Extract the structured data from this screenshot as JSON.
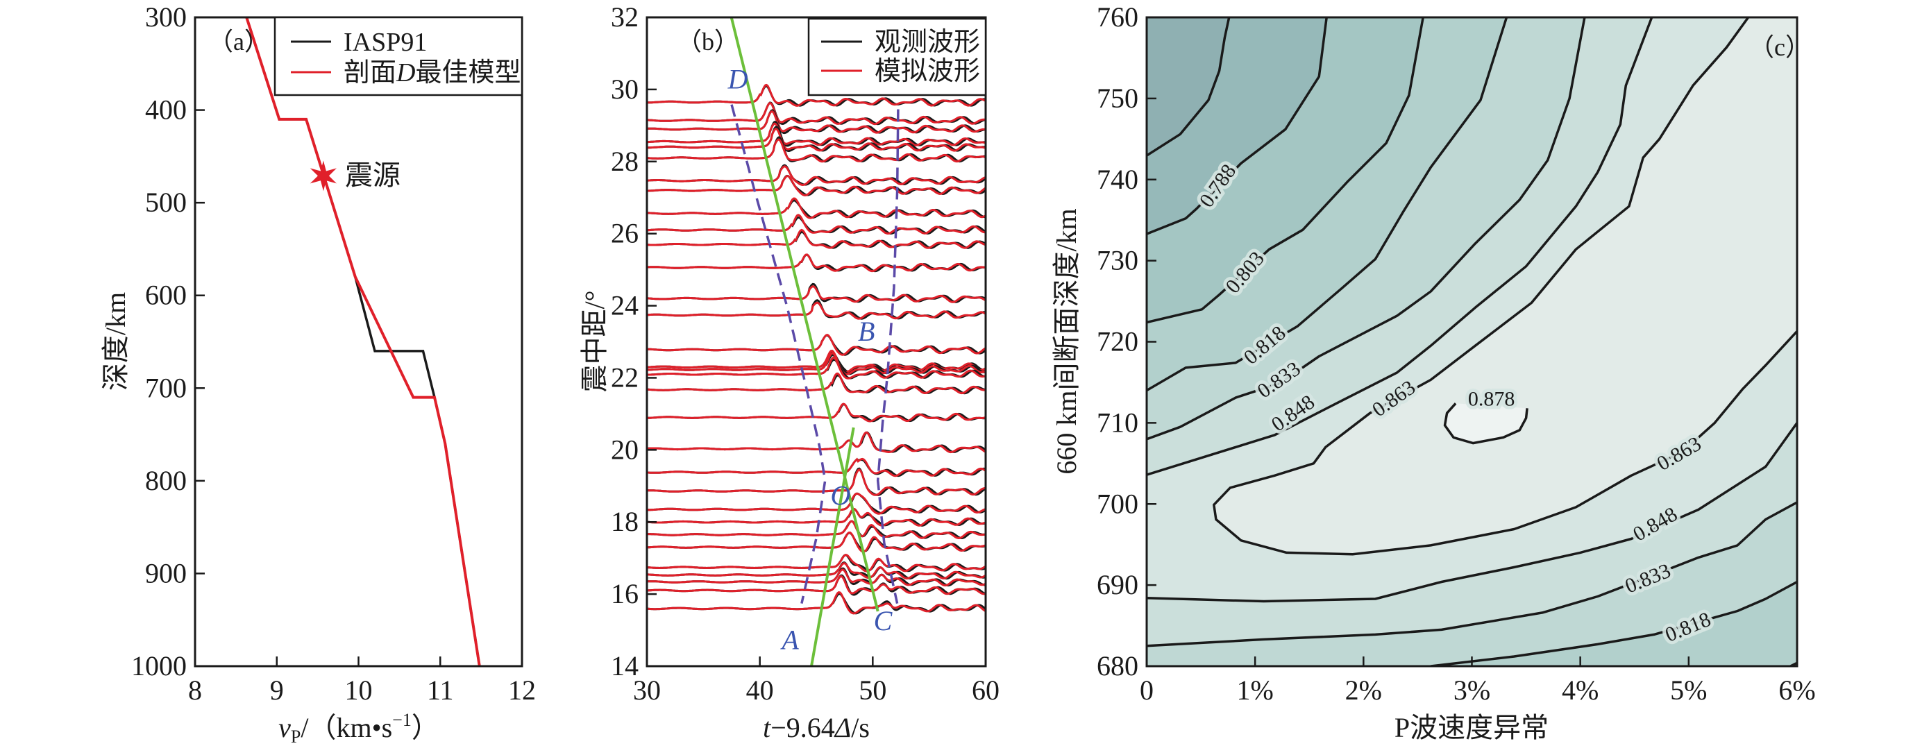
{
  "chart_data": [
    {
      "type": "line",
      "panel_label": "（a）",
      "xlabel": {
        "var": "v",
        "sub": "P",
        "rest": "/（km•s",
        "sup": "−1",
        "end": "）"
      },
      "ylabel": "深度/km",
      "xlim": [
        8,
        12
      ],
      "ylim": [
        1000,
        300
      ],
      "xticks": [
        "8",
        "9",
        "10",
        "11",
        "12"
      ],
      "yticks": [
        "300",
        "400",
        "500",
        "600",
        "700",
        "800",
        "900",
        "1000"
      ],
      "legend_position": "top-right",
      "series": [
        {
          "name": "IASP91",
          "color": "#1a1a1a",
          "points": [
            [
              8.63,
              300
            ],
            [
              9.03,
              410
            ],
            [
              9.36,
              410
            ],
            [
              9.96,
              580
            ],
            [
              10.2,
              660
            ],
            [
              10.79,
              660
            ],
            [
              10.93,
              710
            ],
            [
              11.06,
              760
            ],
            [
              11.48,
              1000
            ]
          ]
        },
        {
          "name": "剖面D最佳模型",
          "color": "#e0202a",
          "points": [
            [
              8.63,
              300
            ],
            [
              9.03,
              410
            ],
            [
              9.36,
              410
            ],
            [
              9.96,
              580
            ],
            [
              10.67,
              710
            ],
            [
              10.93,
              710
            ],
            [
              11.06,
              760
            ],
            [
              11.48,
              1000
            ]
          ]
        }
      ],
      "legend_labels": {
        "iasp": "IASP91",
        "best_pre": "剖面",
        "best_ital": "D",
        "best_post": "最佳模型"
      },
      "annotation": {
        "text": "震源",
        "x": 9.57,
        "y": 471,
        "marker": "star",
        "color": "#e0202a"
      }
    },
    {
      "type": "line",
      "panel_label": "（b）",
      "xlabel": {
        "t": "t",
        "rest": "−9.64",
        "delta": "Δ",
        "end": "/s"
      },
      "ylabel": "震中距/°",
      "xlim": [
        30,
        60
      ],
      "ylim": [
        14,
        32
      ],
      "xticks": [
        "30",
        "40",
        "50",
        "60"
      ],
      "yticks": [
        "14",
        "16",
        "18",
        "20",
        "22",
        "24",
        "26",
        "28",
        "30",
        "32"
      ],
      "legend_position": "top-right",
      "series": [
        {
          "name": "观测波形",
          "color": "#1a1a1a"
        },
        {
          "name": "模拟波形",
          "color": "#e0202a"
        }
      ],
      "trace_distances": [
        29.65,
        29.14,
        28.9,
        28.55,
        28.4,
        28.1,
        27.47,
        27.2,
        26.56,
        26.1,
        25.7,
        25.06,
        24.2,
        23.74,
        22.78,
        22.3,
        22.23,
        22.1,
        21.67,
        20.9,
        20.03,
        19.38,
        18.86,
        18.35,
        18.0,
        17.65,
        17.3,
        16.74,
        16.53,
        16.34,
        16.1,
        15.6
      ],
      "green_lines": [
        {
          "name": "D-C",
          "points": [
            [
              37.48,
              32
            ],
            [
              50.45,
              15.52
            ]
          ],
          "color": "#6cbf3a"
        },
        {
          "name": "A-O",
          "points": [
            [
              44.57,
              14
            ],
            [
              48.3,
              20.62
            ]
          ],
          "color": "#6cbf3a"
        }
      ],
      "dashed_lines": [
        {
          "points": [
            [
              37.5,
              29.58
            ],
            [
              39.55,
              27.18
            ],
            [
              42.42,
              23.97
            ],
            [
              44.14,
              21.69
            ],
            [
              45.29,
              20.09
            ],
            [
              45.78,
              19.15
            ],
            [
              45.0,
              17.55
            ],
            [
              43.7,
              15.74
            ]
          ],
          "color": "#5b4aa8"
        },
        {
          "points": [
            [
              52.25,
              29.45
            ],
            [
              52.17,
              27.18
            ],
            [
              51.88,
              24.5
            ],
            [
              51.31,
              22.09
            ],
            [
              50.88,
              20.76
            ],
            [
              50.45,
              19.15
            ],
            [
              51.02,
              17.41
            ],
            [
              52.17,
              15.74
            ]
          ],
          "color": "#5b4aa8"
        }
      ],
      "point_labels": [
        {
          "text": "D",
          "x": 38.06,
          "y": 30.3
        },
        {
          "text": "B",
          "x": 49.44,
          "y": 23.3
        },
        {
          "text": "O",
          "x": 47.15,
          "y": 18.75
        },
        {
          "text": "A",
          "x": 42.7,
          "y": 14.74
        },
        {
          "text": "C",
          "x": 50.9,
          "y": 15.27
        }
      ],
      "label_color": "#3a55b0"
    },
    {
      "type": "contour",
      "panel_label": "（c）",
      "xlabel": "P波速度异常",
      "ylabel": "660 km间断面深度/km",
      "xlim": [
        0,
        6
      ],
      "ylim": [
        680,
        760
      ],
      "xticks": [
        "0",
        "1%",
        "2%",
        "3%",
        "4%",
        "5%",
        "6%"
      ],
      "yticks": [
        "680",
        "690",
        "700",
        "710",
        "720",
        "730",
        "740",
        "750",
        "760"
      ],
      "band_colors": {
        "below_0.773": "#8fb0b2",
        "0.773-0.788": "#96b9b9",
        "0.788-0.803": "#a4c6c3",
        "0.803-0.818": "#b2d0cc",
        "0.818-0.833": "#bfd8d4",
        "0.833-0.848": "#cbdfdb",
        "0.848-0.863": "#d6e5e2",
        "0.863-0.878": "#e2ebe8",
        "above_0.878": "#eef3f2"
      },
      "contours": [
        {
          "level": 0.773,
          "side": "upper",
          "points": [
            [
              0,
              742.96
            ],
            [
              0.31,
              745.6
            ],
            [
              0.57,
              749.8
            ],
            [
              0.67,
              753.4
            ],
            [
              0.72,
              757.5
            ],
            [
              0.76,
              760
            ]
          ]
        },
        {
          "level": 0.788,
          "side": "upper",
          "label": "0.788",
          "label_at": [
            0.67,
            739.1,
            -55
          ],
          "points": [
            [
              0,
              733.3
            ],
            [
              0.36,
              735.2
            ],
            [
              0.46,
              736.4
            ],
            [
              0.87,
              742
            ],
            [
              1.28,
              746.2
            ],
            [
              1.59,
              752.7
            ],
            [
              1.66,
              760
            ]
          ]
        },
        {
          "level": 0.803,
          "side": "upper",
          "label": "0.803",
          "label_at": [
            0.92,
            728.4,
            -50
          ],
          "points": [
            [
              0,
              722.4
            ],
            [
              0.51,
              724
            ],
            [
              0.67,
              725.8
            ],
            [
              1.13,
              731.4
            ],
            [
              1.44,
              733.8
            ],
            [
              1.85,
              739.7
            ],
            [
              2.21,
              744.5
            ],
            [
              2.42,
              750.4
            ],
            [
              2.55,
              760
            ]
          ]
        },
        {
          "level": 0.818,
          "side": "upper",
          "label": "0.818",
          "label_at": [
            1.1,
            719.4,
            -40
          ],
          "points": [
            [
              0,
              714
            ],
            [
              0.36,
              716.8
            ],
            [
              0.82,
              717.4
            ],
            [
              1.39,
              721.9
            ],
            [
              1.8,
              726.6
            ],
            [
              2.11,
              730.2
            ],
            [
              2.37,
              736.1
            ],
            [
              2.62,
              741.5
            ],
            [
              3.08,
              749.8
            ],
            [
              3.32,
              760
            ]
          ]
        },
        {
          "level": 0.833,
          "side": "upper",
          "label": "0.833",
          "label_at": [
            1.23,
            715.1,
            -35
          ],
          "points": [
            [
              0,
              708
            ],
            [
              0.31,
              709.5
            ],
            [
              0.82,
              713.1
            ],
            [
              1.23,
              714.9
            ],
            [
              1.59,
              718.2
            ],
            [
              2.31,
              723.2
            ],
            [
              2.62,
              726.2
            ],
            [
              3.03,
              732.1
            ],
            [
              3.44,
              737.5
            ],
            [
              3.7,
              742.4
            ],
            [
              3.9,
              750
            ],
            [
              4.04,
              760
            ]
          ]
        },
        {
          "level": 0.848,
          "side": "upper",
          "label": "0.848",
          "label_at": [
            1.36,
            711.0,
            -35
          ],
          "points": [
            [
              0,
              703.6
            ],
            [
              0.82,
              707
            ],
            [
              1.18,
              708.5
            ],
            [
              1.75,
              712.4
            ],
            [
              2.31,
              716.2
            ],
            [
              2.62,
              719.5
            ],
            [
              3.03,
              724.2
            ],
            [
              3.5,
              729.3
            ],
            [
              3.96,
              736.7
            ],
            [
              4.16,
              740.9
            ],
            [
              4.37,
              746.8
            ],
            [
              4.42,
              751.6
            ],
            [
              4.66,
              760
            ]
          ]
        },
        {
          "level": 0.863,
          "side": "inner",
          "labels": [
            {
              "label": "0.863",
              "at": [
                2.29,
                712.8,
                -35
              ]
            },
            {
              "label": "0.863",
              "at": [
                4.92,
                706.0,
                -30
              ]
            }
          ],
          "points": [
            [
              5.55,
              760
            ],
            [
              5.35,
              756.3
            ],
            [
              5.04,
              751.6
            ],
            [
              4.73,
              745.0
            ],
            [
              4.58,
              742.7
            ],
            [
              4.45,
              736.7
            ],
            [
              3.96,
              731.4
            ],
            [
              3.55,
              724.8
            ],
            [
              3.03,
              719.5
            ],
            [
              2.62,
              715.3
            ],
            [
              2.06,
              711.2
            ],
            [
              1.65,
              707.0
            ],
            [
              1.54,
              705.0
            ],
            [
              1.18,
              703.5
            ],
            [
              0.77,
              702.0
            ],
            [
              0.62,
              699.9
            ],
            [
              0.64,
              698.1
            ],
            [
              0.87,
              695.5
            ],
            [
              1.29,
              694.0
            ],
            [
              1.9,
              693.8
            ],
            [
              2.62,
              694.9
            ],
            [
              3.39,
              696.9
            ],
            [
              3.96,
              699.6
            ],
            [
              4.47,
              703.5
            ],
            [
              4.94,
              706.4
            ],
            [
              5.24,
              710.0
            ],
            [
              5.5,
              714.2
            ],
            [
              5.71,
              717.1
            ],
            [
              6,
              721.3
            ]
          ]
        },
        {
          "level": 0.878,
          "side": "closed",
          "label": "0.878",
          "label_at": [
            3.18,
            712.7,
            0
          ],
          "points": [
            [
              2.85,
              712.4
            ],
            [
              2.77,
              711.2
            ],
            [
              2.75,
              709.7
            ],
            [
              2.83,
              708.2
            ],
            [
              3.01,
              707.5
            ],
            [
              3.29,
              708.2
            ],
            [
              3.44,
              709.1
            ],
            [
              3.5,
              710.6
            ],
            [
              3.51,
              711.8
            ]
          ]
        },
        {
          "level": 0.848,
          "side": "lower",
          "label": "0.848",
          "label_at": [
            4.7,
            697.3,
            -30
          ],
          "points": [
            [
              0,
              688.4
            ],
            [
              1.08,
              688
            ],
            [
              2.11,
              688.3
            ],
            [
              2.72,
              690.4
            ],
            [
              3.39,
              692.2
            ],
            [
              4.0,
              694
            ],
            [
              4.47,
              695.7
            ],
            [
              5.09,
              699.3
            ],
            [
              5.71,
              704.6
            ],
            [
              6,
              710
            ]
          ]
        },
        {
          "level": 0.833,
          "side": "lower",
          "label": "0.833",
          "label_at": [
            4.63,
            690.6,
            -22
          ],
          "points": [
            [
              0,
              682.5
            ],
            [
              1.08,
              683.3
            ],
            [
              2.11,
              683.9
            ],
            [
              2.72,
              684.5
            ],
            [
              3.65,
              686.6
            ],
            [
              4.16,
              688.6
            ],
            [
              4.63,
              691
            ],
            [
              5.09,
              693.4
            ],
            [
              5.45,
              694.9
            ],
            [
              5.71,
              698.1
            ],
            [
              6,
              700.2
            ]
          ]
        },
        {
          "level": 0.818,
          "side": "lower",
          "label": "0.818",
          "label_at": [
            5.0,
            684.6,
            -22
          ],
          "points": [
            [
              2.62,
              680
            ],
            [
              3.39,
              681.2
            ],
            [
              4.16,
              682.7
            ],
            [
              4.68,
              683.9
            ],
            [
              5.45,
              686.8
            ],
            [
              5.71,
              688.3
            ],
            [
              6,
              690.4
            ]
          ]
        },
        {
          "level": 0.803,
          "side": "lower",
          "points": [
            [
              5.94,
              680
            ],
            [
              6,
              680.4
            ]
          ]
        }
      ]
    }
  ]
}
